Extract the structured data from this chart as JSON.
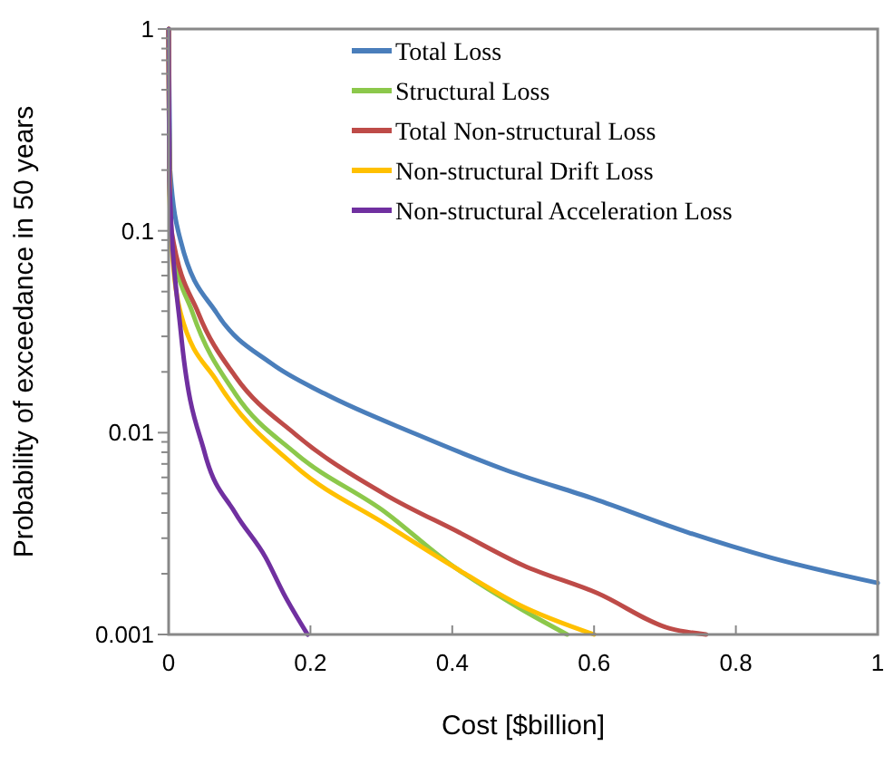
{
  "chart_data": {
    "type": "line",
    "xlabel": "Cost  [$billion]",
    "ylabel": "Probability  of exceedance  in 50 years",
    "log": "y",
    "legend": "top right",
    "grid": false,
    "marker": "none",
    "line_style": "solid",
    "xlim": [
      0,
      1
    ],
    "ylim": [
      0.001,
      1
    ],
    "xticks": [
      0,
      0.2,
      0.4,
      0.6,
      0.8,
      1
    ],
    "yticks": [
      {
        "value": 0.001,
        "label": "0.001"
      },
      {
        "value": 0.002,
        "label": null
      },
      {
        "value": 0.003,
        "label": null
      },
      {
        "value": 0.004,
        "label": null
      },
      {
        "value": 0.005,
        "label": null
      },
      {
        "value": 0.006,
        "label": null
      },
      {
        "value": 0.007,
        "label": null
      },
      {
        "value": 0.008,
        "label": null
      },
      {
        "value": 0.009,
        "label": null
      },
      {
        "value": 0.01,
        "label": "0.01"
      },
      {
        "value": 0.02,
        "label": null
      },
      {
        "value": 0.03,
        "label": null
      },
      {
        "value": 0.04,
        "label": null
      },
      {
        "value": 0.05,
        "label": null
      },
      {
        "value": 0.06,
        "label": null
      },
      {
        "value": 0.07,
        "label": null
      },
      {
        "value": 0.08,
        "label": null
      },
      {
        "value": 0.09,
        "label": null
      },
      {
        "value": 0.1,
        "label": "0.1"
      },
      {
        "value": 0.2,
        "label": null
      },
      {
        "value": 0.3,
        "label": null
      },
      {
        "value": 0.4,
        "label": null
      },
      {
        "value": 0.5,
        "label": null
      },
      {
        "value": 0.6,
        "label": null
      },
      {
        "value": 0.7,
        "label": null
      },
      {
        "value": 0.8,
        "label": null
      },
      {
        "value": 0.9,
        "label": null
      },
      {
        "value": 1,
        "label": "1"
      }
    ],
    "series": [
      {
        "name": "Total Loss",
        "color": "#4a7ebb",
        "x": [
          0,
          0.002,
          0.017,
          0.068,
          0.145,
          0.22,
          0.35,
          0.477,
          0.6,
          0.733,
          0.85,
          1
        ],
        "values": [
          1,
          0.2,
          0.089,
          0.039,
          0.022,
          0.0156,
          0.0098,
          0.0065,
          0.0047,
          0.0032,
          0.0024,
          0.0018
        ]
      },
      {
        "name": "Structural Loss",
        "color": "#8cc84b",
        "x": [
          0,
          0.001,
          0.004,
          0.034,
          0.094,
          0.179,
          0.307,
          0.392,
          0.495,
          0.562
        ],
        "values": [
          1,
          0.2,
          0.089,
          0.039,
          0.0156,
          0.0079,
          0.004,
          0.0023,
          0.00135,
          0.001
        ]
      },
      {
        "name": "Total Non-structural Loss",
        "color": "#be4b48",
        "x": [
          0,
          0.001,
          0.004,
          0.042,
          0.094,
          0.179,
          0.307,
          0.41,
          0.5,
          0.605,
          0.707,
          0.758
        ],
        "values": [
          1,
          0.2,
          0.1,
          0.039,
          0.019,
          0.0098,
          0.0049,
          0.0032,
          0.0022,
          0.0016,
          0.00107,
          0.001
        ]
      },
      {
        "name": "Non-structural Drift Loss",
        "color": "#ffc000",
        "x": [
          0,
          0.001,
          0.003,
          0.017,
          0.068,
          0.179,
          0.307,
          0.418,
          0.495,
          0.6
        ],
        "values": [
          1,
          0.2,
          0.1,
          0.039,
          0.018,
          0.0068,
          0.0035,
          0.002,
          0.0014,
          0.001
        ]
      },
      {
        "name": "Non-structural Acceleration Loss",
        "color": "#7030a0",
        "x": [
          0,
          0.001,
          0.017,
          0.051,
          0.094,
          0.137,
          0.162,
          0.196
        ],
        "values": [
          1,
          0.176,
          0.032,
          0.0079,
          0.004,
          0.0024,
          0.0016,
          0.001
        ]
      }
    ]
  }
}
